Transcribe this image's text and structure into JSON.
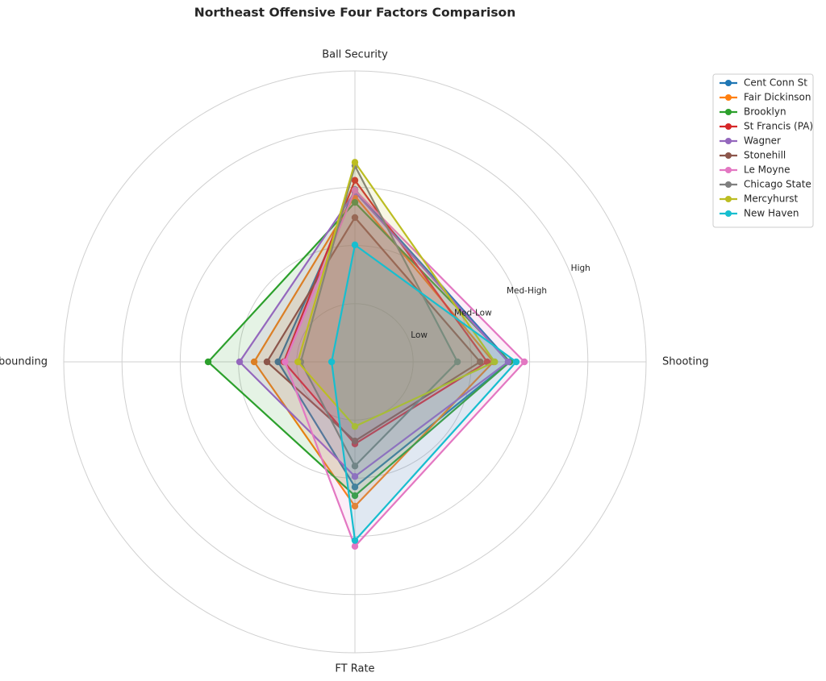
{
  "chart_data": {
    "type": "radar",
    "title": "Northeast Offensive Four Factors Comparison",
    "categories": [
      "Ball Security",
      "Shooting",
      "FT Rate",
      "Off Rebounding"
    ],
    "rlim": [
      0,
      5
    ],
    "rticks": [
      {
        "value": 1,
        "label": "Low"
      },
      {
        "value": 2,
        "label": "Med-Low"
      },
      {
        "value": 3,
        "label": "Med-High"
      },
      {
        "value": 4,
        "label": "High"
      }
    ],
    "grid": true,
    "legend": "upper right outside",
    "series": [
      {
        "name": "Cent Conn St",
        "color": "#1f77b4",
        "values": [
          2.96,
          2.66,
          2.15,
          1.32
        ]
      },
      {
        "name": "Fair Dickinson",
        "color": "#ff7f0e",
        "values": [
          2.85,
          2.38,
          2.48,
          1.73
        ]
      },
      {
        "name": "Brooklyn",
        "color": "#2ca02c",
        "values": [
          2.74,
          2.66,
          2.3,
          2.52
        ]
      },
      {
        "name": "St Francis (PA)",
        "color": "#d62728",
        "values": [
          3.12,
          2.27,
          1.41,
          1.22
        ]
      },
      {
        "name": "Wagner",
        "color": "#9467bd",
        "values": [
          2.92,
          2.63,
          1.97,
          1.98
        ]
      },
      {
        "name": "Stonehill",
        "color": "#8c564b",
        "values": [
          2.48,
          2.15,
          1.36,
          1.51
        ]
      },
      {
        "name": "Le Moyne",
        "color": "#e377c2",
        "values": [
          2.95,
          2.91,
          3.17,
          1.2
        ]
      },
      {
        "name": "Chicago State",
        "color": "#7f7f7f",
        "values": [
          3.37,
          1.76,
          1.79,
          0.93
        ]
      },
      {
        "name": "Mercyhurst",
        "color": "#bcbd22",
        "values": [
          3.43,
          2.4,
          1.11,
          0.98
        ]
      },
      {
        "name": "New Haven",
        "color": "#17becf",
        "values": [
          2.01,
          2.77,
          3.07,
          0.4
        ]
      }
    ]
  }
}
